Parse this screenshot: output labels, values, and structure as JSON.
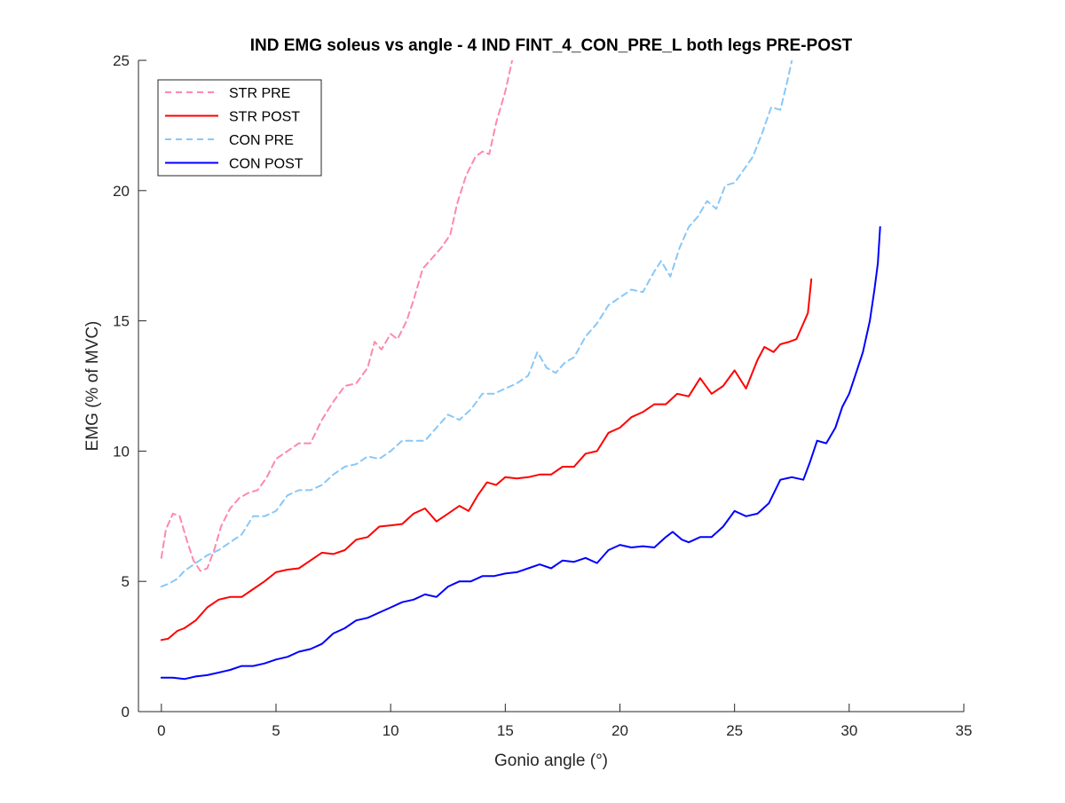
{
  "chart_data": {
    "type": "line",
    "title": "IND EMG soleus vs angle - 4 IND FINT_4_CON_PRE_L both legs PRE-POST",
    "xlabel": "Gonio angle (°)",
    "ylabel": "EMG (% of MVC)",
    "xlim": [
      -1,
      35
    ],
    "ylim": [
      0,
      25
    ],
    "xticks": [
      0,
      5,
      10,
      15,
      20,
      25,
      30,
      35
    ],
    "yticks": [
      0,
      5,
      10,
      15,
      20,
      25
    ],
    "xtick_labels": [
      "0",
      "5",
      "10",
      "15",
      "20",
      "25",
      "30",
      "35"
    ],
    "ytick_labels": [
      "0",
      "5",
      "10",
      "15",
      "20",
      "25"
    ],
    "grid": false,
    "legend_position": "top-left",
    "series": [
      {
        "name": "STR PRE",
        "color": "#ff88aa",
        "style": "dashed",
        "points": [
          [
            0,
            5.9
          ],
          [
            0.2,
            7.0
          ],
          [
            0.5,
            7.6
          ],
          [
            0.8,
            7.5
          ],
          [
            1.1,
            6.6
          ],
          [
            1.4,
            5.8
          ],
          [
            1.7,
            5.4
          ],
          [
            2.0,
            5.5
          ],
          [
            2.3,
            6.2
          ],
          [
            2.6,
            7.1
          ],
          [
            3.0,
            7.8
          ],
          [
            3.4,
            8.2
          ],
          [
            3.8,
            8.4
          ],
          [
            4.2,
            8.5
          ],
          [
            4.6,
            9.0
          ],
          [
            5.0,
            9.7
          ],
          [
            5.5,
            10.0
          ],
          [
            6.0,
            10.3
          ],
          [
            6.5,
            10.3
          ],
          [
            7.0,
            11.2
          ],
          [
            7.5,
            11.9
          ],
          [
            8.0,
            12.5
          ],
          [
            8.5,
            12.6
          ],
          [
            9.0,
            13.2
          ],
          [
            9.3,
            14.2
          ],
          [
            9.6,
            13.9
          ],
          [
            10.0,
            14.5
          ],
          [
            10.3,
            14.3
          ],
          [
            10.7,
            15.0
          ],
          [
            11.0,
            15.8
          ],
          [
            11.4,
            17.0
          ],
          [
            11.8,
            17.4
          ],
          [
            12.2,
            17.8
          ],
          [
            12.6,
            18.3
          ],
          [
            12.9,
            19.5
          ],
          [
            13.3,
            20.6
          ],
          [
            13.7,
            21.3
          ],
          [
            14.0,
            21.5
          ],
          [
            14.3,
            21.4
          ],
          [
            14.6,
            22.6
          ],
          [
            15.0,
            23.8
          ],
          [
            15.3,
            25.0
          ]
        ]
      },
      {
        "name": "STR POST",
        "color": "#ff0000",
        "style": "solid",
        "points": [
          [
            0,
            2.75
          ],
          [
            0.3,
            2.8
          ],
          [
            0.7,
            3.1
          ],
          [
            1.0,
            3.2
          ],
          [
            1.5,
            3.5
          ],
          [
            2.0,
            4.0
          ],
          [
            2.5,
            4.3
          ],
          [
            3.0,
            4.4
          ],
          [
            3.5,
            4.4
          ],
          [
            4.0,
            4.7
          ],
          [
            4.5,
            5.0
          ],
          [
            5.0,
            5.35
          ],
          [
            5.5,
            5.45
          ],
          [
            6.0,
            5.5
          ],
          [
            6.5,
            5.8
          ],
          [
            7.0,
            6.1
          ],
          [
            7.5,
            6.05
          ],
          [
            8.0,
            6.2
          ],
          [
            8.5,
            6.6
          ],
          [
            9.0,
            6.7
          ],
          [
            9.5,
            7.1
          ],
          [
            10.0,
            7.15
          ],
          [
            10.5,
            7.2
          ],
          [
            11.0,
            7.6
          ],
          [
            11.5,
            7.8
          ],
          [
            12.0,
            7.3
          ],
          [
            12.5,
            7.6
          ],
          [
            13.0,
            7.9
          ],
          [
            13.4,
            7.7
          ],
          [
            13.8,
            8.3
          ],
          [
            14.2,
            8.8
          ],
          [
            14.6,
            8.7
          ],
          [
            15.0,
            9.0
          ],
          [
            15.5,
            8.95
          ],
          [
            16.0,
            9.0
          ],
          [
            16.5,
            9.1
          ],
          [
            17.0,
            9.1
          ],
          [
            17.5,
            9.4
          ],
          [
            18.0,
            9.4
          ],
          [
            18.5,
            9.9
          ],
          [
            19.0,
            10.0
          ],
          [
            19.5,
            10.7
          ],
          [
            20.0,
            10.9
          ],
          [
            20.5,
            11.3
          ],
          [
            21.0,
            11.5
          ],
          [
            21.5,
            11.8
          ],
          [
            22.0,
            11.8
          ],
          [
            22.5,
            12.2
          ],
          [
            23.0,
            12.1
          ],
          [
            23.5,
            12.8
          ],
          [
            24.0,
            12.2
          ],
          [
            24.5,
            12.5
          ],
          [
            25.0,
            13.1
          ],
          [
            25.5,
            12.4
          ],
          [
            26.0,
            13.5
          ],
          [
            26.3,
            14.0
          ],
          [
            26.7,
            13.8
          ],
          [
            27.0,
            14.1
          ],
          [
            27.4,
            14.2
          ],
          [
            27.7,
            14.3
          ],
          [
            28.0,
            14.9
          ],
          [
            28.2,
            15.3
          ],
          [
            28.35,
            16.6
          ]
        ]
      },
      {
        "name": "CON PRE",
        "color": "#88c8f8",
        "style": "dashed",
        "points": [
          [
            0,
            4.8
          ],
          [
            0.3,
            4.9
          ],
          [
            0.7,
            5.1
          ],
          [
            1.0,
            5.4
          ],
          [
            1.5,
            5.7
          ],
          [
            2.0,
            6.0
          ],
          [
            2.5,
            6.2
          ],
          [
            3.0,
            6.5
          ],
          [
            3.5,
            6.8
          ],
          [
            4.0,
            7.5
          ],
          [
            4.5,
            7.5
          ],
          [
            5.0,
            7.7
          ],
          [
            5.5,
            8.3
          ],
          [
            6.0,
            8.5
          ],
          [
            6.5,
            8.5
          ],
          [
            7.0,
            8.7
          ],
          [
            7.5,
            9.1
          ],
          [
            8.0,
            9.4
          ],
          [
            8.5,
            9.5
          ],
          [
            9.0,
            9.8
          ],
          [
            9.5,
            9.7
          ],
          [
            10.0,
            10.0
          ],
          [
            10.5,
            10.4
          ],
          [
            11.0,
            10.4
          ],
          [
            11.5,
            10.4
          ],
          [
            12.0,
            10.9
          ],
          [
            12.5,
            11.4
          ],
          [
            13.0,
            11.2
          ],
          [
            13.5,
            11.6
          ],
          [
            14.0,
            12.2
          ],
          [
            14.5,
            12.2
          ],
          [
            15.0,
            12.4
          ],
          [
            15.5,
            12.6
          ],
          [
            16.0,
            12.9
          ],
          [
            16.4,
            13.8
          ],
          [
            16.8,
            13.2
          ],
          [
            17.2,
            13.0
          ],
          [
            17.6,
            13.4
          ],
          [
            18.0,
            13.6
          ],
          [
            18.5,
            14.4
          ],
          [
            19.0,
            14.9
          ],
          [
            19.5,
            15.6
          ],
          [
            20.0,
            15.9
          ],
          [
            20.5,
            16.2
          ],
          [
            21.0,
            16.1
          ],
          [
            21.5,
            16.9
          ],
          [
            21.8,
            17.3
          ],
          [
            22.2,
            16.7
          ],
          [
            22.6,
            17.8
          ],
          [
            23.0,
            18.6
          ],
          [
            23.4,
            19.0
          ],
          [
            23.8,
            19.6
          ],
          [
            24.2,
            19.3
          ],
          [
            24.6,
            20.2
          ],
          [
            25.0,
            20.3
          ],
          [
            25.4,
            20.8
          ],
          [
            25.8,
            21.3
          ],
          [
            26.2,
            22.2
          ],
          [
            26.6,
            23.2
          ],
          [
            27.0,
            23.1
          ],
          [
            27.3,
            24.2
          ],
          [
            27.5,
            25.0
          ]
        ]
      },
      {
        "name": "CON POST",
        "color": "#0000ff",
        "style": "solid",
        "points": [
          [
            0,
            1.3
          ],
          [
            0.5,
            1.3
          ],
          [
            1.0,
            1.25
          ],
          [
            1.5,
            1.35
          ],
          [
            2.0,
            1.4
          ],
          [
            2.5,
            1.5
          ],
          [
            3.0,
            1.6
          ],
          [
            3.5,
            1.75
          ],
          [
            4.0,
            1.75
          ],
          [
            4.5,
            1.85
          ],
          [
            5.0,
            2.0
          ],
          [
            5.5,
            2.1
          ],
          [
            6.0,
            2.3
          ],
          [
            6.5,
            2.4
          ],
          [
            7.0,
            2.6
          ],
          [
            7.5,
            3.0
          ],
          [
            8.0,
            3.2
          ],
          [
            8.5,
            3.5
          ],
          [
            9.0,
            3.6
          ],
          [
            9.5,
            3.8
          ],
          [
            10.0,
            4.0
          ],
          [
            10.5,
            4.2
          ],
          [
            11.0,
            4.3
          ],
          [
            11.5,
            4.5
          ],
          [
            12.0,
            4.4
          ],
          [
            12.5,
            4.8
          ],
          [
            13.0,
            5.0
          ],
          [
            13.5,
            5.0
          ],
          [
            14.0,
            5.2
          ],
          [
            14.5,
            5.2
          ],
          [
            15.0,
            5.3
          ],
          [
            15.5,
            5.35
          ],
          [
            16.0,
            5.5
          ],
          [
            16.5,
            5.65
          ],
          [
            17.0,
            5.5
          ],
          [
            17.5,
            5.8
          ],
          [
            18.0,
            5.75
          ],
          [
            18.5,
            5.9
          ],
          [
            19.0,
            5.7
          ],
          [
            19.5,
            6.2
          ],
          [
            20.0,
            6.4
          ],
          [
            20.5,
            6.3
          ],
          [
            21.0,
            6.35
          ],
          [
            21.5,
            6.3
          ],
          [
            22.0,
            6.7
          ],
          [
            22.3,
            6.9
          ],
          [
            22.7,
            6.6
          ],
          [
            23.0,
            6.5
          ],
          [
            23.5,
            6.7
          ],
          [
            24.0,
            6.7
          ],
          [
            24.5,
            7.1
          ],
          [
            25.0,
            7.7
          ],
          [
            25.5,
            7.5
          ],
          [
            26.0,
            7.6
          ],
          [
            26.5,
            8.0
          ],
          [
            27.0,
            8.9
          ],
          [
            27.5,
            9.0
          ],
          [
            28.0,
            8.9
          ],
          [
            28.3,
            9.6
          ],
          [
            28.6,
            10.4
          ],
          [
            29.0,
            10.3
          ],
          [
            29.4,
            10.9
          ],
          [
            29.7,
            11.7
          ],
          [
            30.0,
            12.2
          ],
          [
            30.3,
            13.0
          ],
          [
            30.6,
            13.8
          ],
          [
            30.9,
            15.0
          ],
          [
            31.1,
            16.2
          ],
          [
            31.25,
            17.2
          ],
          [
            31.35,
            18.6
          ]
        ]
      }
    ]
  }
}
